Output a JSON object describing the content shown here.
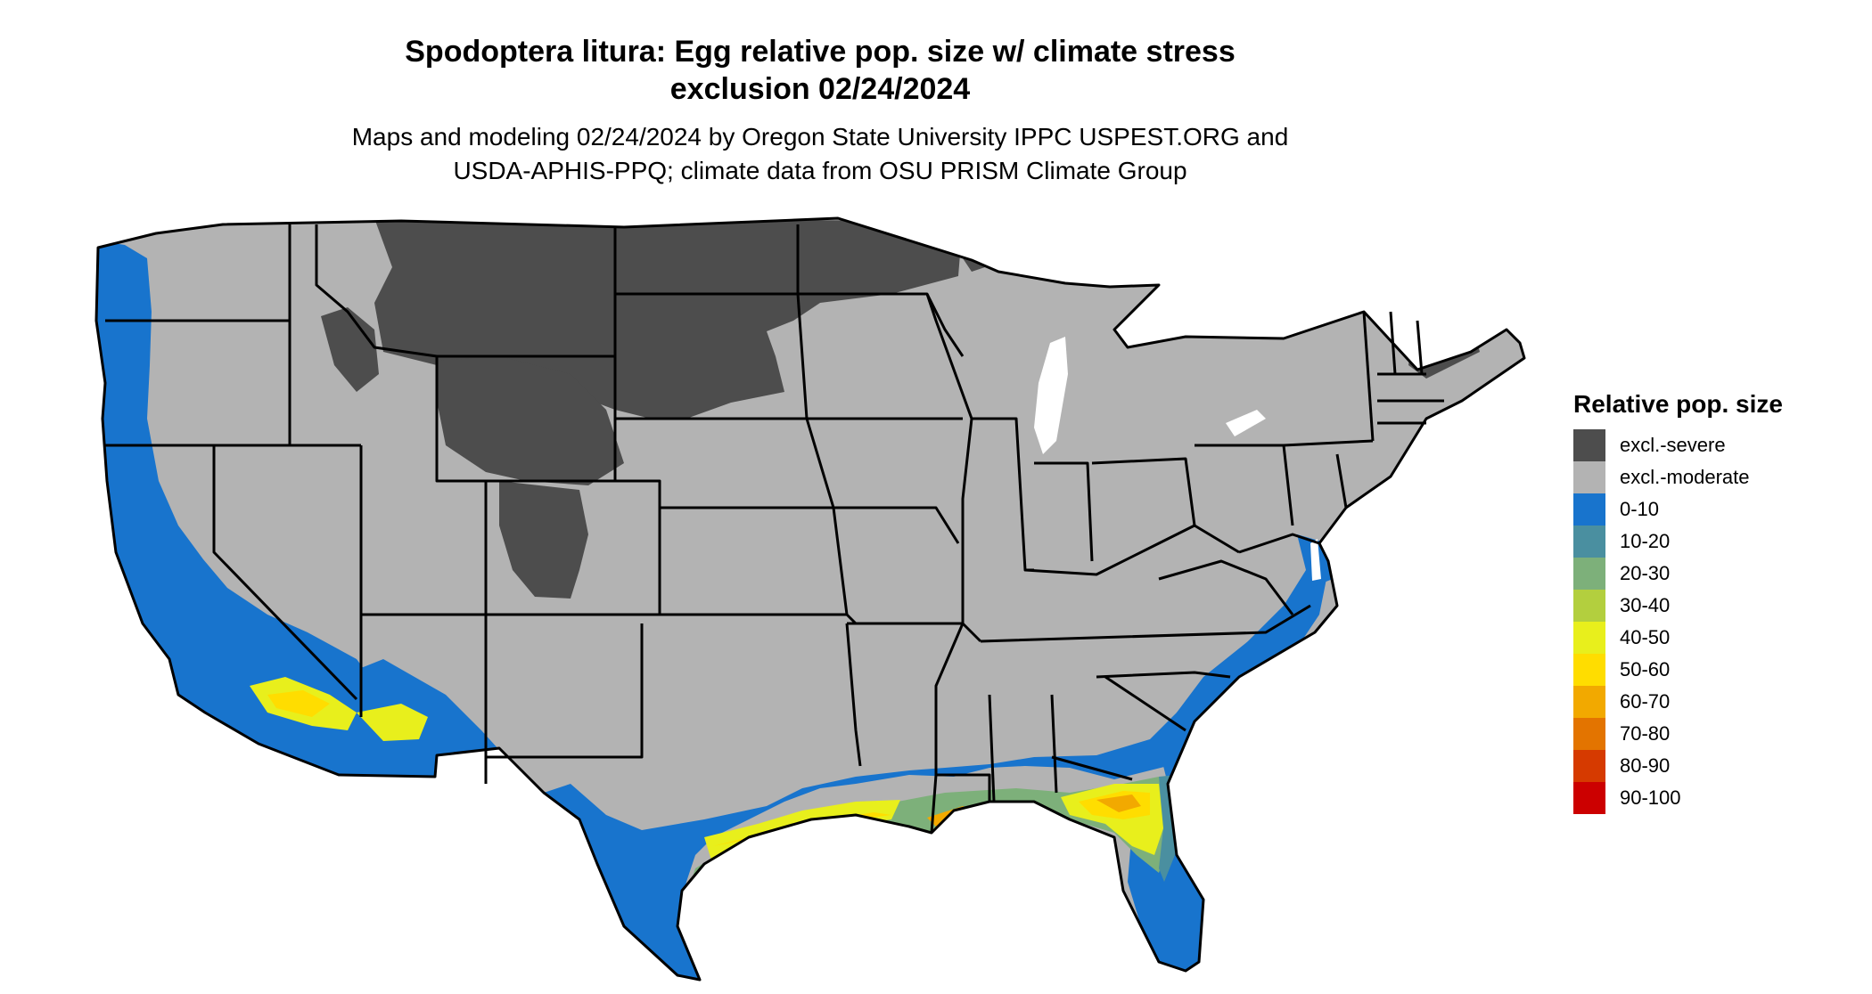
{
  "title": {
    "line1": "Spodoptera litura: Egg relative pop. size w/ climate stress",
    "line2": "exclusion 02/24/2024"
  },
  "subtitle": {
    "line1": "Maps and modeling 02/24/2024 by Oregon State University IPPC USPEST.ORG and",
    "line2": "USDA-APHIS-PPQ; climate data from OSU PRISM Climate Group"
  },
  "legend": {
    "title": "Relative pop. size",
    "items": [
      {
        "label": "excl.-severe",
        "color": "#4d4d4d"
      },
      {
        "label": "excl.-moderate",
        "color": "#b3b3b3"
      },
      {
        "label": "0-10",
        "color": "#1874cd"
      },
      {
        "label": "10-20",
        "color": "#4a8fa0"
      },
      {
        "label": "20-30",
        "color": "#7db07a"
      },
      {
        "label": "30-40",
        "color": "#b3cf3e"
      },
      {
        "label": "40-50",
        "color": "#e8ef1c"
      },
      {
        "label": "50-60",
        "color": "#ffdd00"
      },
      {
        "label": "60-70",
        "color": "#f2a900"
      },
      {
        "label": "70-80",
        "color": "#e37400"
      },
      {
        "label": "80-90",
        "color": "#d63a00"
      },
      {
        "label": "90-100",
        "color": "#cc0000"
      }
    ]
  },
  "map": {
    "region": "Contiguous United States",
    "colors": {
      "background": "#ffffff",
      "state_border": "#000000"
    }
  }
}
